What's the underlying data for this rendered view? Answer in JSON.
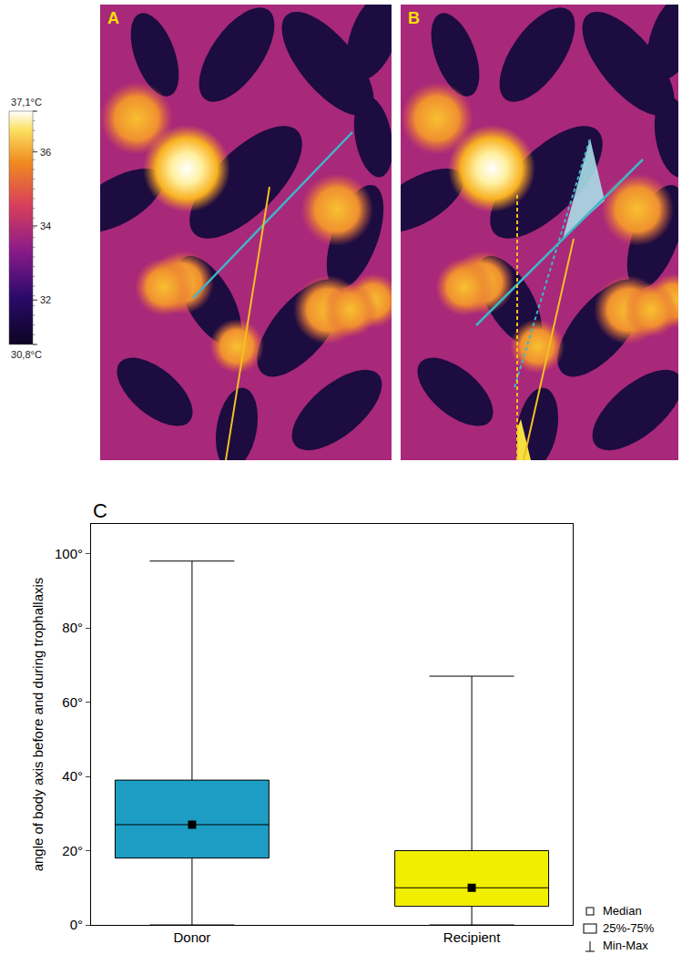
{
  "thermal_images": {
    "panels": [
      "A",
      "B"
    ],
    "colorbar": {
      "range": [
        30.8,
        37.1
      ],
      "ticks": [
        {
          "value": 37.1,
          "label": "37,1°C"
        },
        36,
        34,
        32,
        {
          "value": 30.8,
          "label": "30,8°C"
        }
      ]
    }
  },
  "chart_data": {
    "type": "box",
    "panel": "C",
    "y_label": "angle of body axis before and during trophallaxis",
    "categories": [
      "Donor",
      "Recipient"
    ],
    "colors": [
      "#1d9dc3",
      "#f2ee00"
    ],
    "stats": {
      "min": [
        0,
        0
      ],
      "q1": [
        18,
        5
      ],
      "median": [
        27,
        10
      ],
      "q3": [
        39,
        20
      ],
      "max": [
        98,
        67
      ]
    },
    "ylim": [
      0,
      108
    ],
    "yticks": [
      {
        "value": 0,
        "label": "0°"
      },
      {
        "value": 20,
        "label": "20°"
      },
      {
        "value": 40,
        "label": "40°"
      },
      {
        "value": 60,
        "label": "60°"
      },
      {
        "value": 80,
        "label": "80°"
      },
      {
        "value": 100,
        "label": "100°"
      }
    ],
    "legend": "lower right",
    "legend_items": [
      "Median",
      "25%-75%",
      "Min-Max"
    ]
  }
}
